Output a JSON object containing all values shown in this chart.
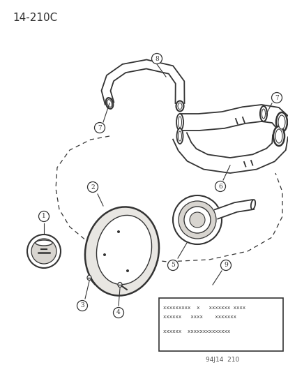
{
  "title": "14-210C",
  "bg_color": "#ffffff",
  "line_color": "#333333",
  "label_box_text_line1": "xxxxxxxxx  x   xxxxxxx xxxx",
  "label_box_text_line2": "xxxxxx   xxxx    xxxxxxx",
  "label_box_text_line3": "xxxxxx  xxxxxxxxxxxxxx",
  "footer_text": "94J14  210"
}
